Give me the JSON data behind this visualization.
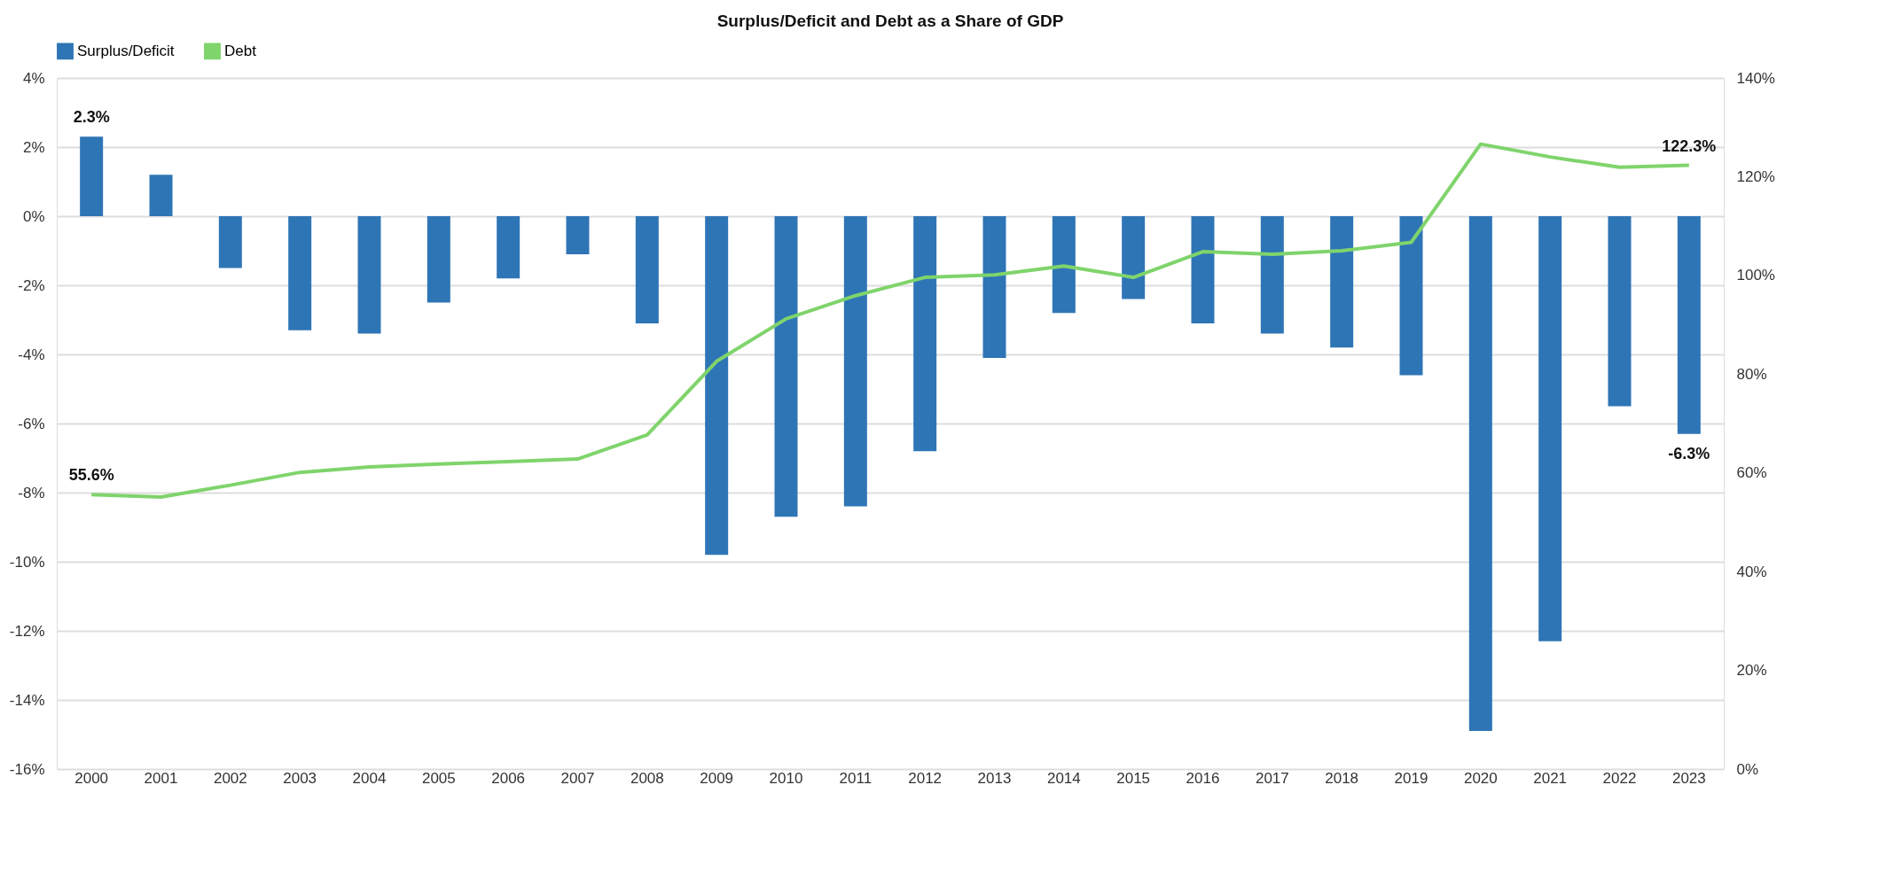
{
  "chart_data": {
    "type": "bar",
    "title": "Surplus/Deficit and Debt as a Share of GDP",
    "categories": [
      "2000",
      "2001",
      "2002",
      "2003",
      "2004",
      "2005",
      "2006",
      "2007",
      "2008",
      "2009",
      "2010",
      "2011",
      "2012",
      "2013",
      "2014",
      "2015",
      "2016",
      "2017",
      "2018",
      "2019",
      "2020",
      "2021",
      "2022",
      "2023"
    ],
    "series": [
      {
        "name": "Surplus/Deficit",
        "color": "#2e75b6",
        "values": [
          2.3,
          1.2,
          -1.5,
          -3.3,
          -3.4,
          -2.5,
          -1.8,
          -1.1,
          -3.1,
          -9.8,
          -8.7,
          -8.4,
          -6.8,
          -4.1,
          -2.8,
          -2.4,
          -3.1,
          -3.4,
          -3.8,
          -4.6,
          -14.9,
          -12.3,
          -5.5,
          -6.3
        ],
        "value_labels": [
          "2.3%",
          null,
          null,
          null,
          null,
          null,
          null,
          null,
          null,
          null,
          null,
          null,
          null,
          null,
          null,
          null,
          null,
          null,
          null,
          null,
          null,
          null,
          null,
          "-6.3%"
        ]
      },
      {
        "name": "Debt",
        "type": "line",
        "axis": "y2",
        "color": "#7fd46b",
        "values": [
          55.6,
          55.1,
          57.5,
          60.1,
          61.2,
          61.8,
          62.3,
          62.8,
          67.7,
          82.6,
          91.2,
          95.9,
          99.6,
          100.1,
          101.9,
          99.6,
          104.8,
          104.3,
          105.0,
          106.7,
          126.6,
          124.0,
          121.9,
          122.3
        ],
        "value_labels": [
          "55.6%",
          null,
          null,
          null,
          null,
          null,
          null,
          null,
          null,
          null,
          null,
          null,
          null,
          null,
          null,
          null,
          null,
          null,
          null,
          null,
          null,
          null,
          null,
          "122.3%"
        ]
      }
    ],
    "ylim": [
      -16,
      4
    ],
    "yticks": [
      {
        "value": -16,
        "label": "-16%"
      },
      {
        "value": -14,
        "label": "-14%"
      },
      {
        "value": -12,
        "label": "-12%"
      },
      {
        "value": -10,
        "label": "-10%"
      },
      {
        "value": -8,
        "label": "-8%"
      },
      {
        "value": -6,
        "label": "-6%"
      },
      {
        "value": -4,
        "label": "-4%"
      },
      {
        "value": -2,
        "label": "-2%"
      },
      {
        "value": 0,
        "label": "0%"
      },
      {
        "value": 2,
        "label": "2%"
      },
      {
        "value": 4,
        "label": "4%"
      }
    ],
    "y2lim": [
      0,
      140
    ],
    "y2ticks": [
      {
        "value": 0,
        "label": "0%"
      },
      {
        "value": 20,
        "label": "20%"
      },
      {
        "value": 40,
        "label": "40%"
      },
      {
        "value": 60,
        "label": "60%"
      },
      {
        "value": 80,
        "label": "80%"
      },
      {
        "value": 100,
        "label": "100%"
      },
      {
        "value": 120,
        "label": "120%"
      },
      {
        "value": 140,
        "label": "140%"
      }
    ],
    "grid": "y",
    "legend": "top"
  }
}
